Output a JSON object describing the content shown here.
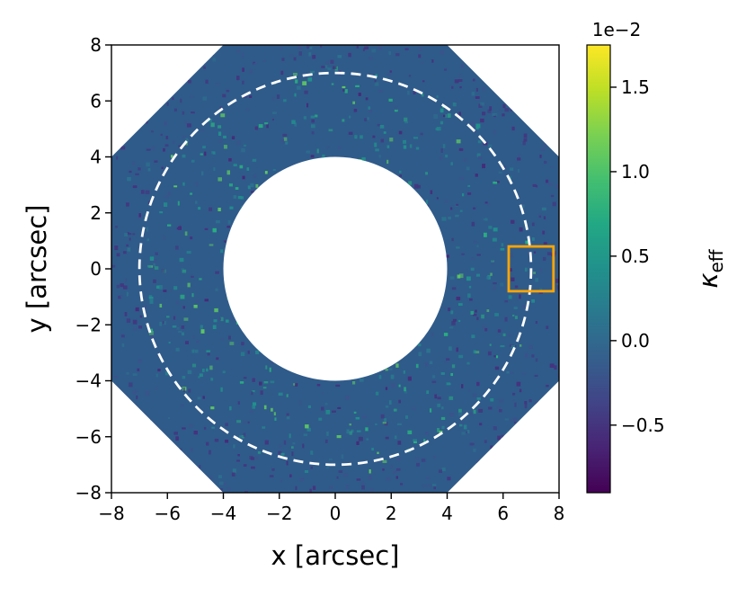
{
  "chart_data": {
    "type": "heatmap",
    "title": "",
    "xlabel": "x [arcsec]",
    "ylabel": "y [arcsec]",
    "xlim": [
      -8,
      8
    ],
    "ylim": [
      -8,
      8
    ],
    "xticks": [
      -8,
      -6,
      -4,
      -2,
      0,
      2,
      4,
      6,
      8
    ],
    "yticks": [
      -8,
      -6,
      -4,
      -2,
      0,
      2,
      4,
      6,
      8
    ],
    "xtick_labels": [
      "−8",
      "−6",
      "−4",
      "−2",
      "0",
      "2",
      "4",
      "6",
      "8"
    ],
    "ytick_labels": [
      "−8",
      "−6",
      "−4",
      "−2",
      "0",
      "2",
      "4",
      "6",
      "8"
    ],
    "colormap": "viridis",
    "mask": {
      "inner_hole_radius": 4.0,
      "octagon_corner_cut": 12.0
    },
    "annotations": {
      "circle": {
        "center": [
          0,
          0
        ],
        "radius": 7.0,
        "style": "dashed",
        "color": "#ffffff"
      },
      "box": {
        "x0": 6.2,
        "x1": 7.8,
        "y0": -0.8,
        "y1": 0.8,
        "color": "#ffa500"
      }
    },
    "colorbar": {
      "label": "κ_eff",
      "label_main": "κ",
      "label_sub": "eff",
      "offset_text": "1e−2",
      "range": [
        -0.009,
        0.0175
      ],
      "ticks": [
        -0.005,
        0.0,
        0.005,
        0.01,
        0.015
      ],
      "tick_labels": [
        "−0.5",
        "0.0",
        "0.5",
        "1.0",
        "1.5"
      ]
    }
  }
}
